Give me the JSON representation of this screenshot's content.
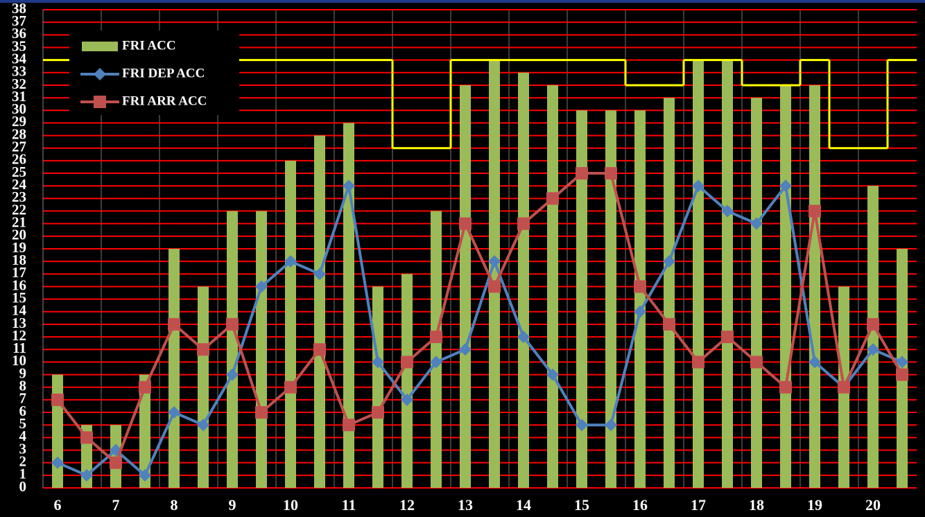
{
  "chart_data": {
    "type": "bar",
    "categories": [
      "6",
      null,
      "7",
      null,
      "8",
      null,
      "9",
      null,
      "10",
      null,
      "11",
      null,
      "12",
      null,
      "13",
      null,
      "14",
      null,
      "15",
      null,
      "16",
      null,
      "17",
      null,
      "18",
      null,
      "19",
      null,
      "20",
      null
    ],
    "series": [
      {
        "name": "FRI ACC",
        "type": "bar",
        "color": "#9bbb59",
        "values": [
          9,
          5,
          5,
          9,
          19,
          16,
          22,
          22,
          26,
          28,
          29,
          16,
          17,
          22,
          32,
          34,
          33,
          32,
          30,
          30,
          30,
          31,
          34,
          34,
          31,
          32,
          32,
          16,
          24,
          19
        ]
      },
      {
        "name": "FRI DEP ACC",
        "type": "line",
        "marker": "diamond",
        "color": "#4f81bd",
        "values": [
          2,
          1,
          3,
          1,
          6,
          5,
          9,
          16,
          18,
          17,
          24,
          10,
          7,
          10,
          11,
          18,
          12,
          9,
          5,
          5,
          14,
          18,
          24,
          22,
          21,
          24,
          10,
          8,
          11,
          10
        ]
      },
      {
        "name": "FRI ARR ACC",
        "type": "line",
        "marker": "square",
        "color": "#c0504d",
        "values": [
          7,
          4,
          2,
          8,
          13,
          11,
          13,
          6,
          8,
          11,
          5,
          6,
          10,
          12,
          21,
          16,
          21,
          23,
          25,
          25,
          16,
          13,
          10,
          12,
          10,
          8,
          22,
          8,
          13,
          9
        ]
      },
      {
        "type": "step",
        "color": "#ffff00",
        "values": [
          34,
          34,
          34,
          34,
          34,
          34,
          34,
          34,
          34,
          34,
          34,
          34,
          27,
          27,
          34,
          34,
          34,
          34,
          34,
          34,
          32,
          32,
          34,
          34,
          32,
          32,
          34,
          27,
          27,
          34
        ]
      }
    ],
    "ylim": [
      0,
      38
    ],
    "yticks": [
      0,
      1,
      2,
      3,
      4,
      5,
      6,
      7,
      8,
      9,
      10,
      11,
      12,
      13,
      14,
      15,
      16,
      17,
      18,
      19,
      20,
      21,
      22,
      23,
      24,
      25,
      26,
      27,
      28,
      29,
      30,
      31,
      32,
      33,
      34,
      35,
      36,
      37,
      38
    ],
    "grid": true,
    "grid_color": "#ff0000",
    "legend": "upper-left"
  }
}
